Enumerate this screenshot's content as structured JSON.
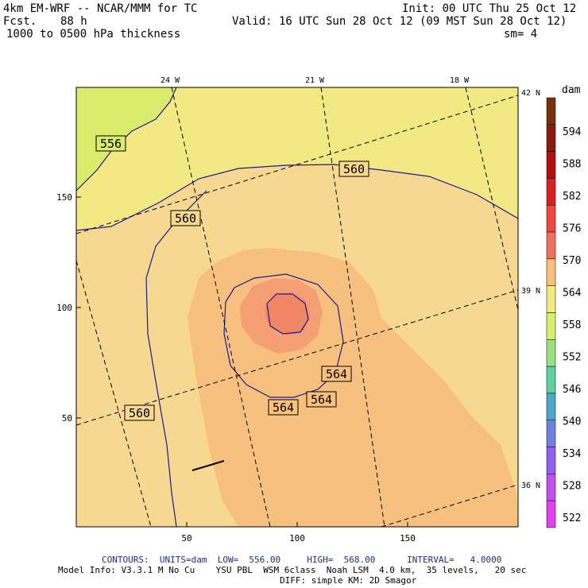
{
  "header": {
    "model": "4km EM-WRF -- NCAR/MMM for TC",
    "forecast_label": "Fcst.",
    "forecast_hours": "88 h",
    "field": "1000 to 0500 hPa thickness",
    "init": "Init: 00 UTC Thu 25 Oct 12",
    "valid": "Valid: 16 UTC Sun 28 Oct 12 (09 MST Sun 28 Oct 12)",
    "smoothing": "sm= 4"
  },
  "map": {
    "lon_labels": [
      "24 W",
      "21 W",
      "18 W"
    ],
    "lat_labels": [
      "42 N",
      "39 N",
      "36 N"
    ],
    "x_ticks": [
      "50",
      "100",
      "150"
    ],
    "y_ticks": [
      "150",
      "100",
      "50"
    ],
    "contour_labels": [
      "556",
      "560",
      "560",
      "560",
      "564",
      "564",
      "564"
    ],
    "colors": {
      "c552": "#d9ec6c",
      "c556": "#f2e982",
      "c560": "#f7d890",
      "c564": "#f8c07f",
      "c566": "#f69f74",
      "c568": "#f08866"
    }
  },
  "colorbar": {
    "unit": "dam",
    "levels": [
      "594",
      "588",
      "582",
      "576",
      "570",
      "564",
      "558",
      "552",
      "546",
      "540",
      "534",
      "528",
      "522"
    ],
    "colors": [
      "#7a3010",
      "#8b1a10",
      "#b01010",
      "#d82020",
      "#f04840",
      "#f07060",
      "#f8c080",
      "#f2e982",
      "#d8ee70",
      "#9ae080",
      "#60d0a0",
      "#4aa8c8",
      "#7080e0",
      "#9060f0",
      "#c050f0",
      "#e040f0"
    ]
  },
  "footer": {
    "contours": "CONTOURS:  UNITS=dam  LOW=  556.00     HIGH=  568.00      INTERVAL=   4.0000",
    "model_info": "Model Info: V3.3.1 M No Cu    YSU PBL  WSM 6class  Noah LSM  4.0 km,  35 levels,   20 sec",
    "diff_info": "DIFF: simple KM: 2D Smagor"
  }
}
